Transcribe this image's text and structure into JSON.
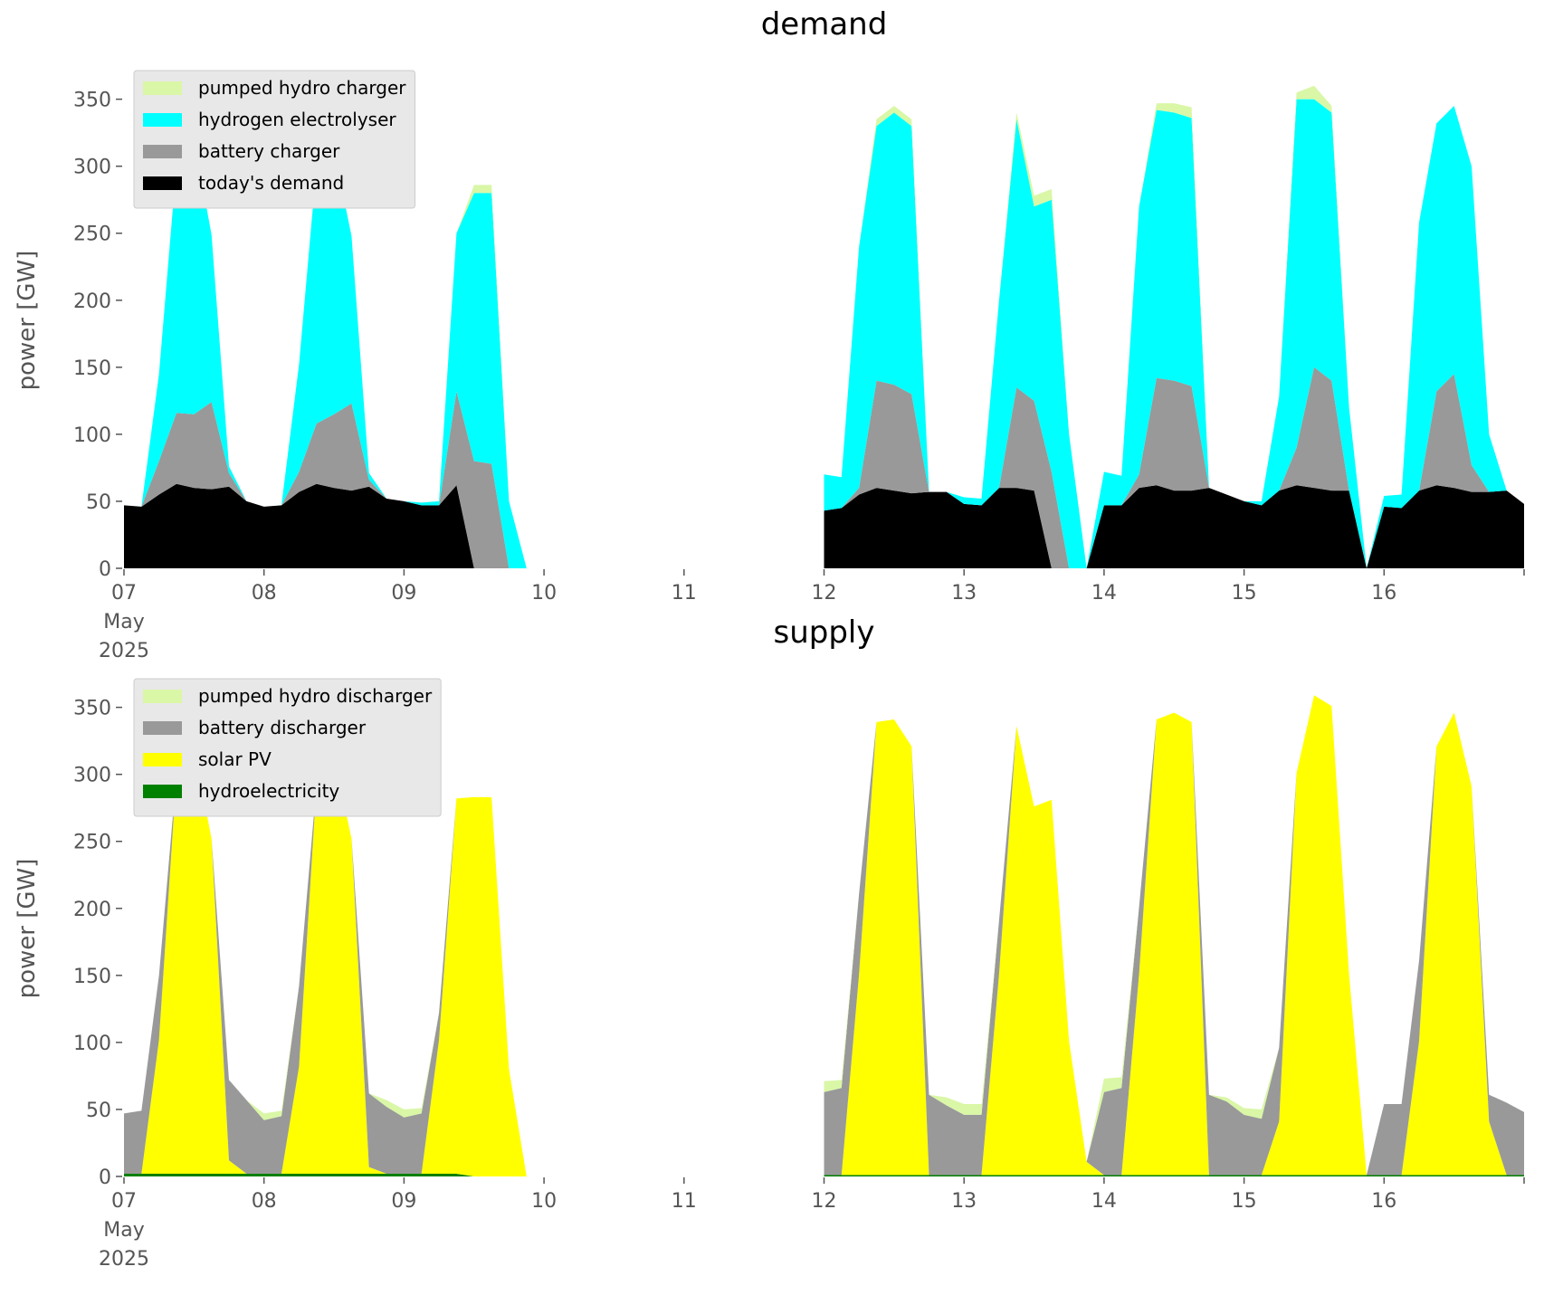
{
  "chart_data": [
    {
      "type": "area",
      "title": "demand",
      "ylabel": "power [GW]",
      "legend": "upper left",
      "x": [
        "2025-05-07 00:00",
        "2025-05-07 03:00",
        "2025-05-07 06:00",
        "2025-05-07 09:00",
        "2025-05-07 12:00",
        "2025-05-07 15:00",
        "2025-05-07 18:00",
        "2025-05-07 21:00",
        "2025-05-08 00:00",
        "2025-05-08 03:00",
        "2025-05-08 06:00",
        "2025-05-08 09:00",
        "2025-05-08 12:00",
        "2025-05-08 15:00",
        "2025-05-08 18:00",
        "2025-05-08 21:00",
        "2025-05-09 00:00",
        "2025-05-09 03:00",
        "2025-05-09 06:00",
        "2025-05-09 09:00",
        "2025-05-09 12:00",
        "2025-05-09 15:00",
        "2025-05-09 18:00",
        "2025-05-09 21:00",
        "2025-05-10 00:00",
        "2025-05-10 03:00",
        "2025-05-10 06:00",
        "2025-05-10 09:00",
        "2025-05-10 12:00",
        "2025-05-10 15:00",
        "2025-05-10 18:00",
        "2025-05-10 21:00",
        "2025-05-11 00:00",
        "2025-05-11 03:00",
        "2025-05-11 06:00",
        "2025-05-11 09:00",
        "2025-05-11 12:00",
        "2025-05-11 15:00",
        "2025-05-11 18:00",
        "2025-05-11 21:00",
        "2025-05-12 00:00",
        "2025-05-12 03:00",
        "2025-05-12 06:00",
        "2025-05-12 09:00",
        "2025-05-12 12:00",
        "2025-05-12 15:00",
        "2025-05-12 18:00",
        "2025-05-12 21:00",
        "2025-05-13 00:00",
        "2025-05-13 03:00",
        "2025-05-13 06:00",
        "2025-05-13 09:00",
        "2025-05-13 12:00",
        "2025-05-13 15:00",
        "2025-05-13 18:00",
        "2025-05-13 21:00",
        "2025-05-14 00:00",
        "2025-05-14 03:00",
        "2025-05-14 06:00",
        "2025-05-14 09:00",
        "2025-05-14 12:00",
        "2025-05-14 15:00",
        "2025-05-14 18:00",
        "2025-05-14 21:00",
        "2025-05-15 00:00",
        "2025-05-15 03:00",
        "2025-05-15 06:00",
        "2025-05-15 09:00",
        "2025-05-15 12:00",
        "2025-05-15 15:00",
        "2025-05-15 18:00",
        "2025-05-15 21:00",
        "2025-05-16 00:00",
        "2025-05-16 03:00",
        "2025-05-16 06:00",
        "2025-05-16 09:00",
        "2025-05-16 12:00",
        "2025-05-16 15:00",
        "2025-05-16 18:00",
        "2025-05-16 21:00",
        "2025-05-17 00:00"
      ],
      "xlim": [
        "2025-05-07 00:00",
        "2025-05-17 00:00"
      ],
      "xticks": [
        {
          "value": "2025-05-07 00:00",
          "label": "07\nMay\n2025"
        },
        {
          "value": "2025-05-08 00:00",
          "label": "08"
        },
        {
          "value": "2025-05-09 00:00",
          "label": "09"
        },
        {
          "value": "2025-05-10 00:00",
          "label": "10"
        },
        {
          "value": "2025-05-11 00:00",
          "label": "11"
        },
        {
          "value": "2025-05-12 00:00",
          "label": "12"
        },
        {
          "value": "2025-05-13 00:00",
          "label": "13"
        },
        {
          "value": "2025-05-14 00:00",
          "label": "14"
        },
        {
          "value": "2025-05-15 00:00",
          "label": "15"
        },
        {
          "value": "2025-05-16 00:00",
          "label": "16"
        },
        {
          "value": "2025-05-17 00:00",
          "label": null
        }
      ],
      "ylim": [
        0,
        370
      ],
      "yticks": [
        0,
        50,
        100,
        150,
        200,
        250,
        300,
        350
      ],
      "series": [
        {
          "name": "today's demand",
          "color": "#000000",
          "values": [
            47,
            46,
            55,
            63,
            60,
            59,
            61,
            50,
            46,
            47,
            57,
            63,
            60,
            58,
            61,
            52,
            50,
            47,
            47,
            62,
            0,
            0,
            0,
            0,
            null,
            null,
            null,
            null,
            null,
            null,
            null,
            null,
            null,
            null,
            null,
            null,
            null,
            null,
            null,
            null,
            43,
            45,
            55,
            60,
            58,
            56,
            57,
            57,
            48,
            47,
            60,
            60,
            58,
            0,
            0,
            0,
            47,
            47,
            60,
            62,
            58,
            58,
            60,
            55,
            50,
            47,
            58,
            62,
            60,
            58,
            58,
            0,
            46,
            45,
            58,
            62,
            60,
            57,
            57,
            58,
            48
          ]
        },
        {
          "name": "battery charger",
          "color": "#999999",
          "values": [
            0,
            0,
            25,
            53,
            55,
            65,
            10,
            0,
            0,
            0,
            15,
            45,
            55,
            65,
            5,
            0,
            0,
            0,
            0,
            70,
            80,
            78,
            0,
            0,
            null,
            null,
            null,
            null,
            null,
            null,
            null,
            null,
            null,
            null,
            null,
            null,
            null,
            null,
            null,
            null,
            0,
            0,
            5,
            80,
            79,
            74,
            0,
            0,
            0,
            0,
            0,
            75,
            67,
            72,
            0,
            0,
            0,
            0,
            10,
            80,
            82,
            78,
            0,
            0,
            0,
            0,
            0,
            28,
            90,
            82,
            0,
            0,
            0,
            0,
            0,
            70,
            85,
            20,
            0,
            0,
            0
          ]
        },
        {
          "name": "hydrogen electrolyser",
          "color": "#00ffff",
          "values": [
            0,
            0,
            65,
            185,
            205,
            125,
            5,
            0,
            0,
            0,
            80,
            192,
            197,
            125,
            5,
            0,
            0,
            2,
            3,
            118,
            200,
            202,
            50,
            0,
            null,
            null,
            null,
            null,
            null,
            null,
            null,
            null,
            null,
            null,
            null,
            null,
            null,
            null,
            null,
            null,
            27,
            23,
            180,
            190,
            203,
            200,
            0,
            0,
            5,
            5,
            140,
            200,
            145,
            203,
            100,
            0,
            25,
            22,
            200,
            200,
            200,
            200,
            0,
            0,
            0,
            3,
            70,
            260,
            200,
            200,
            62,
            0,
            8,
            10,
            200,
            200,
            200,
            223,
            43,
            0,
            0
          ]
        },
        {
          "name": "pumped hydro charger",
          "color": "#d9f7a6",
          "values": [
            0,
            0,
            0,
            0,
            0,
            0,
            0,
            0,
            0,
            0,
            0,
            0,
            0,
            0,
            0,
            0,
            0,
            0,
            0,
            0,
            6,
            6,
            0,
            0,
            null,
            null,
            null,
            null,
            null,
            null,
            null,
            null,
            null,
            null,
            null,
            null,
            null,
            null,
            null,
            null,
            0,
            0,
            0,
            5,
            5,
            5,
            0,
            0,
            0,
            0,
            0,
            5,
            8,
            8,
            0,
            0,
            0,
            0,
            0,
            5,
            7,
            8,
            0,
            0,
            0,
            0,
            0,
            5,
            10,
            5,
            0,
            0,
            0,
            0,
            0,
            0,
            0,
            0,
            0,
            0,
            0
          ]
        }
      ]
    },
    {
      "type": "area",
      "title": "supply",
      "ylabel": "power [GW]",
      "legend": "upper left",
      "x": [
        "2025-05-07 00:00",
        "2025-05-07 03:00",
        "2025-05-07 06:00",
        "2025-05-07 09:00",
        "2025-05-07 12:00",
        "2025-05-07 15:00",
        "2025-05-07 18:00",
        "2025-05-07 21:00",
        "2025-05-08 00:00",
        "2025-05-08 03:00",
        "2025-05-08 06:00",
        "2025-05-08 09:00",
        "2025-05-08 12:00",
        "2025-05-08 15:00",
        "2025-05-08 18:00",
        "2025-05-08 21:00",
        "2025-05-09 00:00",
        "2025-05-09 03:00",
        "2025-05-09 06:00",
        "2025-05-09 09:00",
        "2025-05-09 12:00",
        "2025-05-09 15:00",
        "2025-05-09 18:00",
        "2025-05-09 21:00",
        "2025-05-10 00:00",
        "2025-05-10 03:00",
        "2025-05-10 06:00",
        "2025-05-10 09:00",
        "2025-05-10 12:00",
        "2025-05-10 15:00",
        "2025-05-10 18:00",
        "2025-05-10 21:00",
        "2025-05-11 00:00",
        "2025-05-11 03:00",
        "2025-05-11 06:00",
        "2025-05-11 09:00",
        "2025-05-11 12:00",
        "2025-05-11 15:00",
        "2025-05-11 18:00",
        "2025-05-11 21:00",
        "2025-05-12 00:00",
        "2025-05-12 03:00",
        "2025-05-12 06:00",
        "2025-05-12 09:00",
        "2025-05-12 12:00",
        "2025-05-12 15:00",
        "2025-05-12 18:00",
        "2025-05-12 21:00",
        "2025-05-13 00:00",
        "2025-05-13 03:00",
        "2025-05-13 06:00",
        "2025-05-13 09:00",
        "2025-05-13 12:00",
        "2025-05-13 15:00",
        "2025-05-13 18:00",
        "2025-05-13 21:00",
        "2025-05-14 00:00",
        "2025-05-14 03:00",
        "2025-05-14 06:00",
        "2025-05-14 09:00",
        "2025-05-14 12:00",
        "2025-05-14 15:00",
        "2025-05-14 18:00",
        "2025-05-14 21:00",
        "2025-05-15 00:00",
        "2025-05-15 03:00",
        "2025-05-15 06:00",
        "2025-05-15 09:00",
        "2025-05-15 12:00",
        "2025-05-15 15:00",
        "2025-05-15 18:00",
        "2025-05-15 21:00",
        "2025-05-16 00:00",
        "2025-05-16 03:00",
        "2025-05-16 06:00",
        "2025-05-16 09:00",
        "2025-05-16 12:00",
        "2025-05-16 15:00",
        "2025-05-16 18:00",
        "2025-05-16 21:00",
        "2025-05-17 00:00"
      ],
      "xlim": [
        "2025-05-07 00:00",
        "2025-05-17 00:00"
      ],
      "xticks": [
        {
          "value": "2025-05-07 00:00",
          "label": "07\nMay\n2025"
        },
        {
          "value": "2025-05-08 00:00",
          "label": "08"
        },
        {
          "value": "2025-05-09 00:00",
          "label": "09"
        },
        {
          "value": "2025-05-10 00:00",
          "label": "10"
        },
        {
          "value": "2025-05-11 00:00",
          "label": "11"
        },
        {
          "value": "2025-05-12 00:00",
          "label": "12"
        },
        {
          "value": "2025-05-13 00:00",
          "label": "13"
        },
        {
          "value": "2025-05-14 00:00",
          "label": "14"
        },
        {
          "value": "2025-05-15 00:00",
          "label": "15"
        },
        {
          "value": "2025-05-16 00:00",
          "label": "16"
        },
        {
          "value": "2025-05-17 00:00",
          "label": null
        }
      ],
      "ylim": [
        0,
        370
      ],
      "yticks": [
        0,
        50,
        100,
        150,
        200,
        250,
        300,
        350
      ],
      "series": [
        {
          "name": "hydroelectricity",
          "color": "#008000",
          "values": [
            2,
            2,
            2,
            2,
            2,
            2,
            2,
            2,
            2,
            2,
            2,
            2,
            2,
            2,
            2,
            2,
            2,
            2,
            2,
            2,
            0,
            0,
            0,
            0,
            null,
            null,
            null,
            null,
            null,
            null,
            null,
            null,
            null,
            null,
            null,
            null,
            null,
            null,
            null,
            null,
            1,
            1,
            1,
            1,
            1,
            1,
            1,
            1,
            1,
            1,
            1,
            1,
            1,
            1,
            1,
            1,
            1,
            1,
            1,
            1,
            1,
            1,
            1,
            1,
            1,
            1,
            1,
            1,
            1,
            1,
            1,
            1,
            1,
            1,
            1,
            1,
            1,
            1,
            1,
            1,
            1
          ]
        },
        {
          "name": "solar PV",
          "color": "#ffff00",
          "values": [
            0,
            0,
            100,
            298,
            318,
            250,
            10,
            0,
            0,
            0,
            80,
            290,
            312,
            250,
            5,
            0,
            0,
            0,
            100,
            280,
            283,
            283,
            80,
            0,
            null,
            null,
            null,
            null,
            null,
            null,
            null,
            null,
            null,
            null,
            null,
            null,
            null,
            null,
            null,
            null,
            0,
            0,
            150,
            338,
            340,
            320,
            0,
            0,
            0,
            0,
            150,
            335,
            275,
            280,
            100,
            10,
            0,
            0,
            150,
            340,
            345,
            338,
            0,
            0,
            0,
            0,
            40,
            300,
            358,
            350,
            150,
            0,
            0,
            0,
            100,
            320,
            345,
            290,
            40,
            0,
            0
          ]
        },
        {
          "name": "battery discharger",
          "color": "#999999",
          "values": [
            45,
            47,
            48,
            0,
            0,
            0,
            60,
            55,
            40,
            43,
            60,
            0,
            0,
            0,
            55,
            50,
            42,
            45,
            20,
            0,
            0,
            0,
            0,
            0,
            null,
            null,
            null,
            null,
            null,
            null,
            null,
            null,
            null,
            null,
            null,
            null,
            null,
            null,
            null,
            null,
            62,
            65,
            60,
            0,
            0,
            0,
            60,
            52,
            45,
            45,
            40,
            0,
            0,
            0,
            0,
            0,
            62,
            65,
            50,
            0,
            0,
            0,
            60,
            55,
            45,
            42,
            55,
            0,
            0,
            0,
            0,
            0,
            53,
            53,
            60,
            0,
            0,
            0,
            20,
            54,
            47
          ]
        },
        {
          "name": "pumped hydro discharger",
          "color": "#d9f7a6",
          "values": [
            0,
            0,
            0,
            0,
            0,
            0,
            0,
            0,
            5,
            4,
            0,
            0,
            0,
            0,
            0,
            5,
            6,
            4,
            0,
            0,
            0,
            0,
            0,
            0,
            null,
            null,
            null,
            null,
            null,
            null,
            null,
            null,
            null,
            null,
            null,
            null,
            null,
            null,
            null,
            null,
            8,
            6,
            0,
            0,
            0,
            0,
            0,
            6,
            8,
            8,
            0,
            0,
            0,
            0,
            0,
            0,
            10,
            8,
            0,
            0,
            0,
            0,
            0,
            3,
            5,
            7,
            0,
            0,
            0,
            0,
            0,
            0,
            0,
            0,
            0,
            0,
            0,
            0,
            0,
            0,
            0
          ]
        }
      ]
    }
  ]
}
